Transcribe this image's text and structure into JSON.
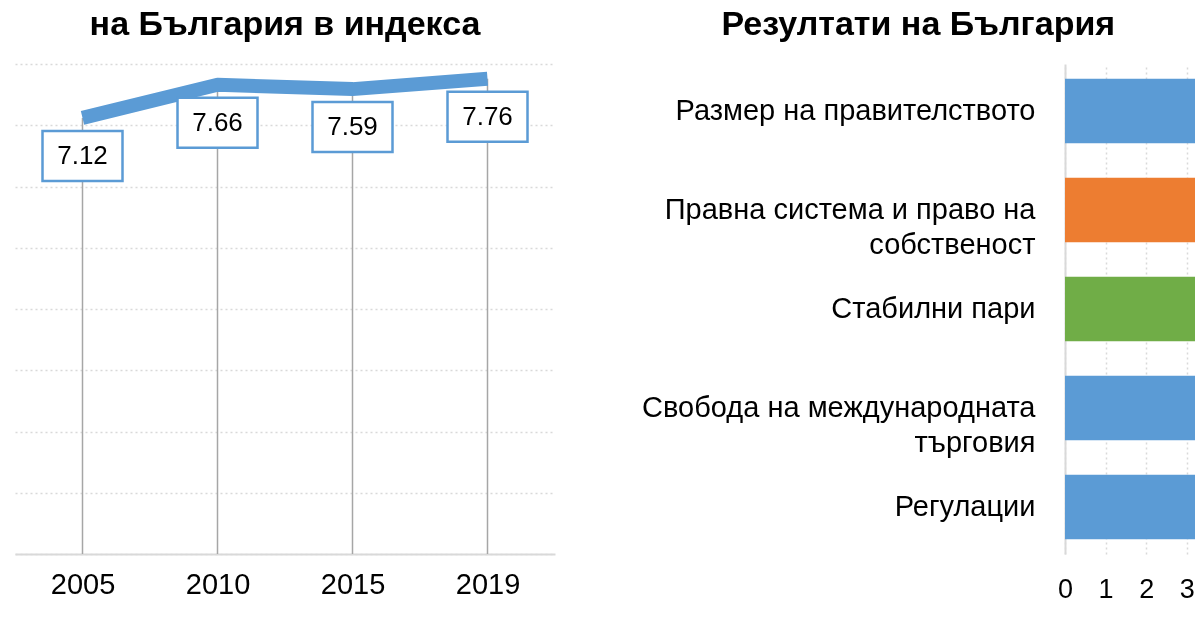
{
  "chart_data": [
    {
      "type": "line",
      "title": "на България в индекса",
      "categories": [
        "2005",
        "2010",
        "2015",
        "2019"
      ],
      "values": [
        7.12,
        7.66,
        7.59,
        7.76
      ],
      "color": "#5b9bd5",
      "data_labels": true,
      "grid": true,
      "tick_labels": "x"
    },
    {
      "type": "bar",
      "orientation": "horizontal",
      "title": "Резултати на България",
      "categories": [
        "Размер на правителството",
        "Правна система и право на собственост",
        "Стабилни пари",
        "Свобода на международната търговия",
        "Регулации"
      ],
      "values": [
        3.2,
        3.2,
        3.2,
        3.2,
        3.2
      ],
      "colors": [
        "#5b9bd5",
        "#ed7d31",
        "#70ad47",
        "#5b9bd5",
        "#5b9bd5"
      ],
      "xlim": [
        0,
        3.2
      ],
      "xticks": [
        0,
        1,
        2,
        3
      ],
      "grid": "x"
    }
  ]
}
